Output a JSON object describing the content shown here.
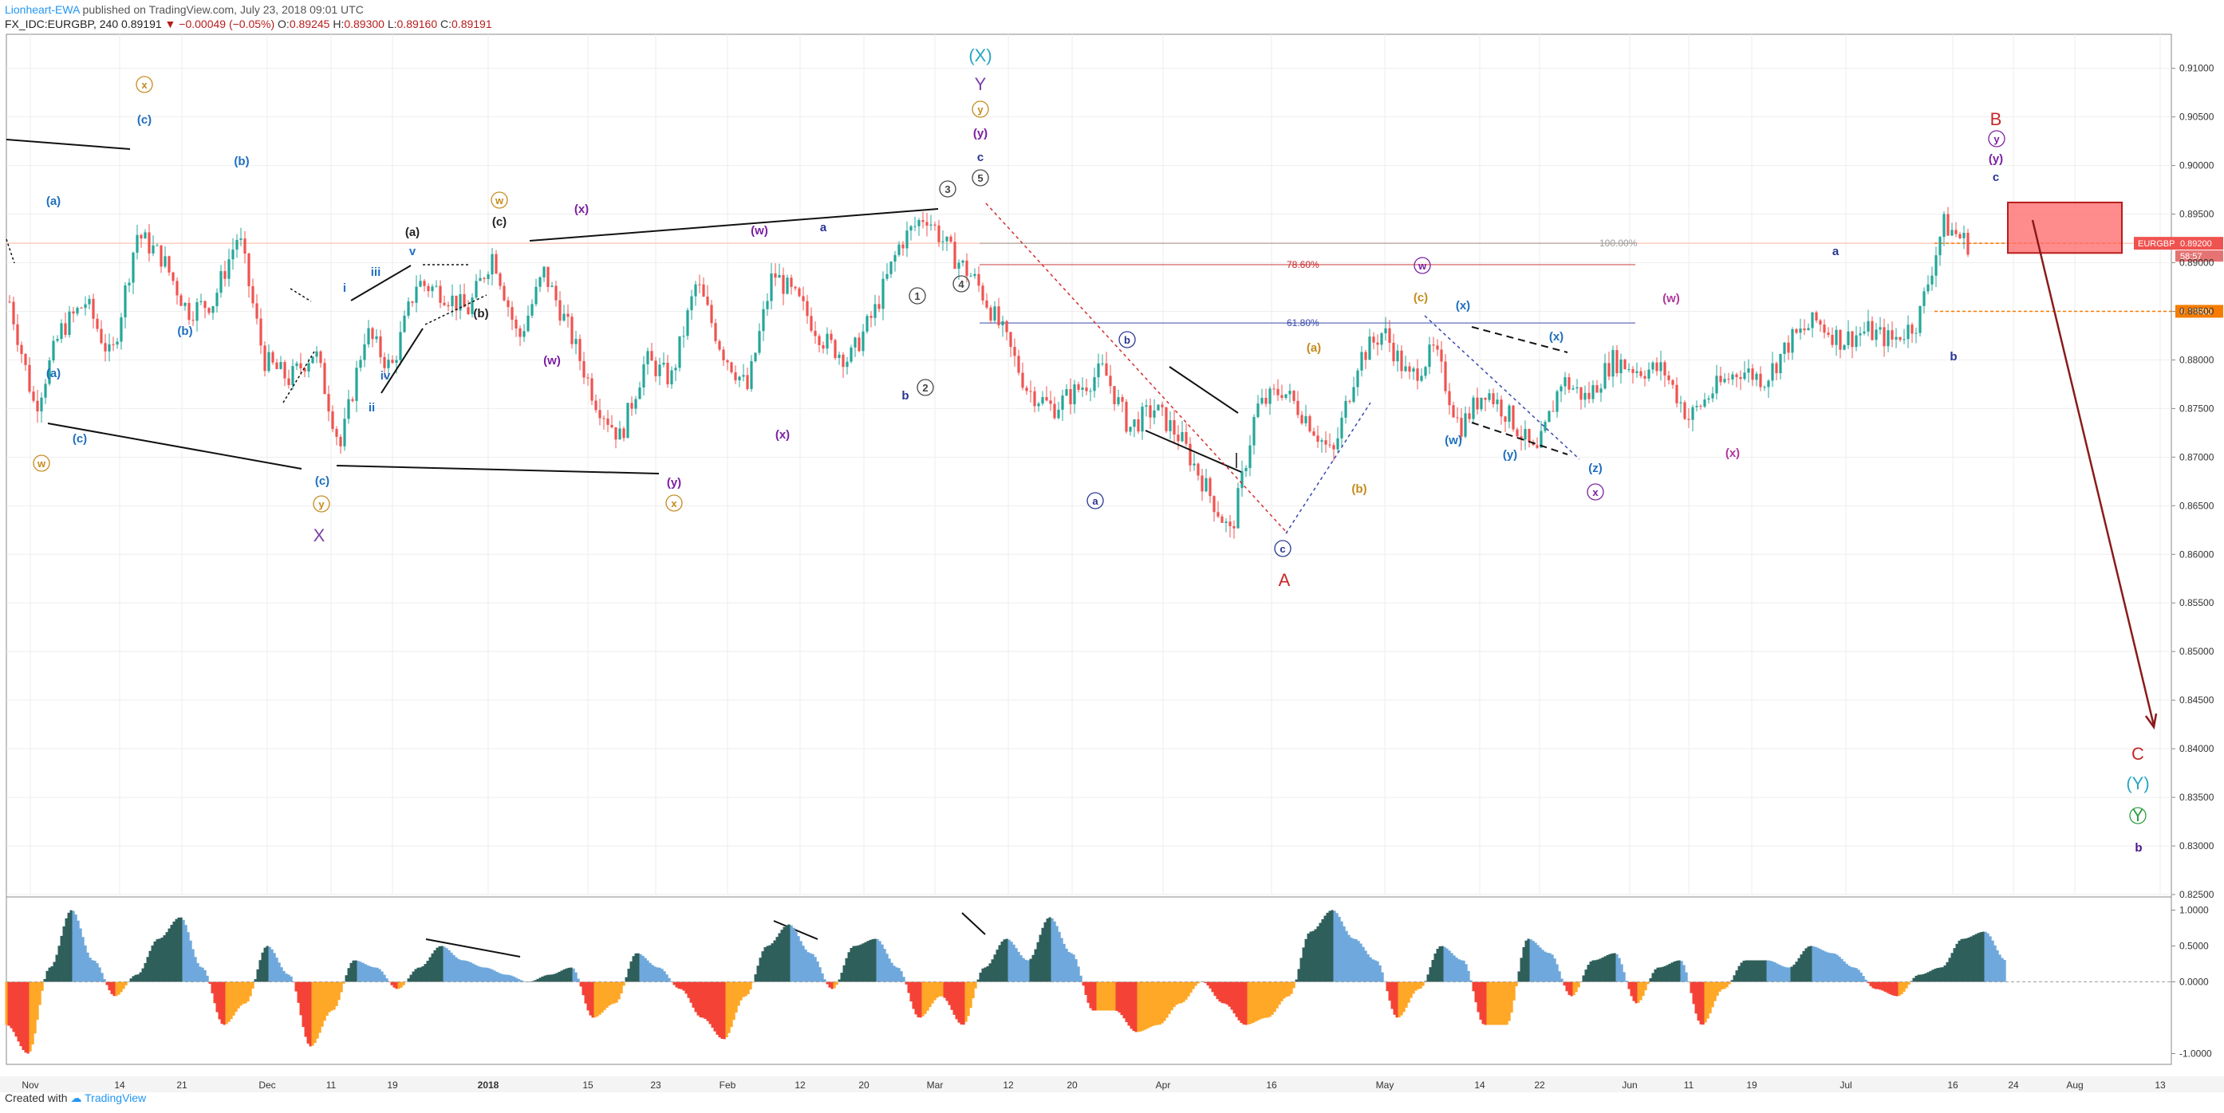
{
  "header": {
    "author": "Lionheart-EWA",
    "published": "published on TradingView.com, July 23, 2018 09:01 UTC",
    "symbol": "FX_IDC:EURGBP, 240",
    "last": "0.89191",
    "change": "▼ −0.00049 (−0.05%)",
    "o_label": "O:",
    "o": "0.89245",
    "h_label": "H:",
    "h": "0.89300",
    "l_label": "L:",
    "l": "0.89160",
    "c_label": "C:",
    "c": "0.89191"
  },
  "footer": {
    "created_with": "Created with",
    "brand": "TradingView"
  },
  "colors": {
    "bull": "#26a69a",
    "bear": "#ef5350",
    "grid": "#eeeeee",
    "osc_pos_dark": "#2f5f5a",
    "osc_pos_light": "#6fa8dc",
    "osc_neg_red": "#f44336",
    "osc_neg_orange": "#ffa726"
  },
  "chart_data": [
    {
      "type": "line",
      "chart_style": "candlestick",
      "title": "",
      "xlabel": "",
      "ylabel": "",
      "x_ticks": [
        "Nov",
        "14",
        "21",
        "Dec",
        "11",
        "19",
        "2018",
        "15",
        "23",
        "Feb",
        "12",
        "20",
        "Mar",
        "12",
        "20",
        "Apr",
        "16",
        "May",
        "14",
        "22",
        "Jun",
        "11",
        "19",
        "Jul",
        "16",
        "24",
        "Aug",
        "13"
      ],
      "y_ticks": [
        "0.91000",
        "0.90500",
        "0.90000",
        "0.89500",
        "0.89000",
        "0.88500",
        "0.88000",
        "0.87500",
        "0.87000",
        "0.86500",
        "0.86000",
        "0.85500",
        "0.85000",
        "0.84500",
        "0.84000",
        "0.83500",
        "0.83000",
        "0.82500"
      ],
      "ylim": [
        0.825,
        0.9135
      ],
      "series": [
        {
          "x": [
            "Oct 27",
            "Oct 31",
            "Nov 3",
            "Nov 7",
            "Nov 10",
            "Nov 14",
            "Nov 16",
            "Nov 21",
            "Nov 25",
            "Nov 29",
            "Dec 1",
            "Dec 5",
            "Dec 8",
            "Dec 12",
            "Dec 15",
            "Dec 19",
            "Dec 23",
            "Dec 28",
            "Jan 2",
            "Jan 5",
            "Jan 9",
            "Jan 12",
            "Jan 16",
            "Jan 19",
            "Jan 23",
            "Jan 26",
            "Jan 30",
            "Feb 2",
            "Feb 6",
            "Feb 9",
            "Feb 13",
            "Feb 16",
            "Feb 20",
            "Feb 23",
            "Feb 27",
            "Mar 1",
            "Mar 5",
            "Mar 7",
            "Mar 9",
            "Mar 13",
            "Mar 16",
            "Mar 20",
            "Mar 23",
            "Mar 27",
            "Mar 30",
            "Apr 3",
            "Apr 6",
            "Apr 10",
            "Apr 13",
            "Apr 17",
            "Apr 20",
            "Apr 24",
            "Apr 27",
            "May 1",
            "May 4",
            "May 8",
            "May 11",
            "May 15",
            "May 18",
            "May 22",
            "May 25",
            "May 29",
            "Jun 1",
            "Jun 5",
            "Jun 8",
            "Jun 12",
            "Jun 15",
            "Jun 19",
            "Jun 22",
            "Jun 26",
            "Jun 29",
            "Jul 3",
            "Jul 6",
            "Jul 10",
            "Jul 13",
            "Jul 17",
            "Jul 20",
            "Jul 23"
          ],
          "values": [
            0.886,
            0.875,
            0.883,
            0.886,
            0.88,
            0.893,
            0.8905,
            0.885,
            0.886,
            0.893,
            0.88,
            0.878,
            0.881,
            0.871,
            0.883,
            0.879,
            0.888,
            0.887,
            0.885,
            0.891,
            0.882,
            0.889,
            0.883,
            0.876,
            0.872,
            0.88,
            0.878,
            0.888,
            0.881,
            0.877,
            0.889,
            0.886,
            0.882,
            0.88,
            0.885,
            0.892,
            0.895,
            0.891,
            0.888,
            0.883,
            0.877,
            0.875,
            0.877,
            0.879,
            0.873,
            0.875,
            0.872,
            0.867,
            0.862,
            0.875,
            0.877,
            0.874,
            0.87,
            0.88,
            0.883,
            0.878,
            0.881,
            0.873,
            0.877,
            0.874,
            0.87,
            0.878,
            0.876,
            0.88,
            0.879,
            0.879,
            0.874,
            0.877,
            0.879,
            0.878,
            0.882,
            0.884,
            0.882,
            0.883,
            0.882,
            0.884,
            0.894,
            0.8919
          ]
        }
      ],
      "price_marks": [
        {
          "label": "EURGBP",
          "value": "0.89200",
          "sub": "58:57",
          "color": "#ef5350"
        },
        {
          "label": "",
          "value": "0.88500",
          "color": "#f57c00"
        }
      ],
      "fib_levels": [
        {
          "label": "100.00%",
          "color": "#9e9e9e"
        },
        {
          "label": "78.60%",
          "color": "#c62828"
        },
        {
          "label": "61.80%",
          "color": "#3949ab"
        }
      ],
      "wave_labels": [
        {
          "text": "(X)",
          "color": "#26a6c2"
        },
        {
          "text": "Y",
          "color": "#7b3fa8"
        },
        {
          "text": "y",
          "color": "#c58b1c",
          "circled": true
        },
        {
          "text": "(y)",
          "color": "#7b1fa2"
        },
        {
          "text": "c",
          "color": "#283593"
        },
        {
          "text": "5",
          "color": "#444",
          "circled": true
        },
        {
          "text": "x",
          "color": "#c58b1c",
          "circled": true
        },
        {
          "text": "(c)",
          "color": "#1e6fbf"
        },
        {
          "text": "(b)",
          "color": "#1e6fbf"
        },
        {
          "text": "(a)",
          "color": "#1e6fbf"
        },
        {
          "text": "(a)",
          "color": "#1e6fbf"
        },
        {
          "text": "(b)",
          "color": "#1e6fbf"
        },
        {
          "text": "(c)",
          "color": "#1e6fbf"
        },
        {
          "text": "w",
          "color": "#c58b1c",
          "circled": true
        },
        {
          "text": "(c)",
          "color": "#1e6fbf"
        },
        {
          "text": "y",
          "color": "#c58b1c",
          "circled": true
        },
        {
          "text": "X",
          "color": "#7b3fa8"
        },
        {
          "text": "i",
          "color": "#1e6fbf"
        },
        {
          "text": "iii",
          "color": "#1e6fbf"
        },
        {
          "text": "v",
          "color": "#1e6fbf"
        },
        {
          "text": "iv",
          "color": "#1e6fbf"
        },
        {
          "text": "ii",
          "color": "#1e6fbf"
        },
        {
          "text": "(a)",
          "color": "#222"
        },
        {
          "text": "(c)",
          "color": "#222"
        },
        {
          "text": "(b)",
          "color": "#222"
        },
        {
          "text": "w",
          "color": "#c58b1c",
          "circled": true
        },
        {
          "text": "(x)",
          "color": "#7b1fa2"
        },
        {
          "text": "(w)",
          "color": "#7b1fa2"
        },
        {
          "text": "(y)",
          "color": "#7b1fa2"
        },
        {
          "text": "x",
          "color": "#c58b1c",
          "circled": true
        },
        {
          "text": "(w)",
          "color": "#7b1fa2"
        },
        {
          "text": "a",
          "color": "#283593"
        },
        {
          "text": "(x)",
          "color": "#7b1fa2"
        },
        {
          "text": "b",
          "color": "#283593"
        },
        {
          "text": "1",
          "color": "#444",
          "circled": true
        },
        {
          "text": "2",
          "color": "#444",
          "circled": true
        },
        {
          "text": "3",
          "color": "#444",
          "circled": true
        },
        {
          "text": "4",
          "color": "#444",
          "circled": true
        },
        {
          "text": "b",
          "color": "#283593",
          "circled": true
        },
        {
          "text": "a",
          "color": "#283593",
          "circled": true
        },
        {
          "text": "c",
          "color": "#283593",
          "circled": true
        },
        {
          "text": "A",
          "color": "#c62828"
        },
        {
          "text": "(a)",
          "color": "#c58b1c"
        },
        {
          "text": "(b)",
          "color": "#c58b1c"
        },
        {
          "text": "(c)",
          "color": "#c58b1c"
        },
        {
          "text": "w",
          "color": "#7b1fa2",
          "circled": true
        },
        {
          "text": "(x)",
          "color": "#1e6fbf"
        },
        {
          "text": "(w)",
          "color": "#1e6fbf"
        },
        {
          "text": "(y)",
          "color": "#1e6fbf"
        },
        {
          "text": "(x)",
          "color": "#1e6fbf"
        },
        {
          "text": "(z)",
          "color": "#1e6fbf"
        },
        {
          "text": "x",
          "color": "#7b1fa2",
          "circled": true
        },
        {
          "text": "(w)",
          "color": "#b0379c"
        },
        {
          "text": "(x)",
          "color": "#b0379c"
        },
        {
          "text": "a",
          "color": "#283593"
        },
        {
          "text": "b",
          "color": "#283593"
        },
        {
          "text": "B",
          "color": "#c62828"
        },
        {
          "text": "y",
          "color": "#7b1fa2",
          "circled": true
        },
        {
          "text": "(y)",
          "color": "#7b1fa2"
        },
        {
          "text": "c",
          "color": "#283593"
        },
        {
          "text": "C",
          "color": "#c62828"
        },
        {
          "text": "(Y)",
          "color": "#26a6c2"
        },
        {
          "text": "Y",
          "color": "#2e9e3e",
          "circled": true
        },
        {
          "text": "b",
          "color": "#4a148c"
        }
      ]
    },
    {
      "type": "area",
      "title": "",
      "y_ticks": [
        "1.0000",
        "0.5000",
        "0.0000",
        "-1.0000"
      ],
      "ylim": [
        -1.15,
        1.15
      ],
      "series": [
        {
          "values": [
            -0.6,
            -1.0,
            0.2,
            1.0,
            0.3,
            -0.2,
            0.1,
            0.6,
            0.9,
            0.2,
            -0.6,
            -0.3,
            0.5,
            0.1,
            -0.9,
            -0.4,
            0.3,
            0.2,
            -0.1,
            0.2,
            0.5,
            0.3,
            0.2,
            0.1,
            0.0,
            0.1,
            0.2,
            -0.5,
            -0.3,
            0.4,
            0.2,
            -0.1,
            -0.5,
            -0.8,
            -0.2,
            0.5,
            0.8,
            0.4,
            -0.1,
            0.5,
            0.6,
            0.2,
            -0.5,
            -0.2,
            -0.6,
            0.2,
            0.6,
            0.3,
            0.9,
            0.4,
            -0.4,
            -0.4,
            -0.7,
            -0.6,
            -0.3,
            0.0,
            -0.3,
            -0.6,
            -0.5,
            -0.2,
            0.7,
            1.0,
            0.6,
            0.3,
            -0.5,
            -0.1,
            0.5,
            0.3,
            -0.6,
            -0.6,
            0.6,
            0.4,
            -0.2,
            0.3,
            0.4,
            -0.3,
            0.2,
            0.3,
            -0.6,
            -0.1,
            0.3,
            0.3,
            0.2,
            0.5,
            0.4,
            0.2,
            -0.1,
            -0.2,
            0.1,
            0.2,
            0.6,
            0.7,
            0.3
          ]
        }
      ]
    }
  ]
}
